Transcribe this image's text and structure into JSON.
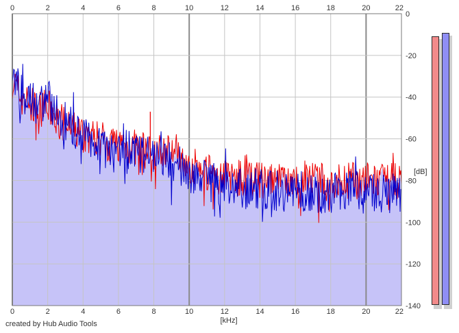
{
  "chart_data": {
    "type": "area",
    "title": "",
    "xlabel": "[kHz]",
    "ylabel": "[dB]",
    "xlim": [
      0,
      22
    ],
    "ylim": [
      -140,
      0
    ],
    "x_ticks": [
      0,
      2,
      4,
      6,
      8,
      10,
      12,
      14,
      16,
      18,
      20,
      22
    ],
    "y_ticks": [
      0,
      -20,
      -40,
      -60,
      -80,
      -100,
      -120,
      -140
    ],
    "grid": true,
    "colors": {
      "plot_bg": "#ffffff",
      "grid_minor": "#c4c4c4",
      "grid_major": "#8a8a8a",
      "fill": "#c6c3f8"
    },
    "series": [
      {
        "color": "#ee0000",
        "x": [
          0,
          0.5,
          1,
          1.5,
          2,
          2.5,
          3,
          3.5,
          4,
          4.5,
          5,
          5.5,
          6,
          6.5,
          7,
          7.5,
          8,
          8.5,
          9,
          9.5,
          10,
          11,
          12,
          13,
          14,
          15,
          16,
          17,
          18,
          19,
          20,
          21,
          22
        ],
        "values": [
          -32,
          -40,
          -44,
          -46,
          -45,
          -50,
          -54,
          -56,
          -58,
          -59,
          -60,
          -62,
          -62,
          -64,
          -64,
          -66,
          -66,
          -66,
          -65,
          -67,
          -72,
          -76,
          -78,
          -79,
          -80,
          -81,
          -80,
          -80,
          -81,
          -80,
          -80,
          -81,
          -80
        ],
        "spread": 9
      },
      {
        "color": "#0000cc",
        "x": [
          0,
          0.5,
          1,
          1.5,
          2,
          2.5,
          3,
          3.5,
          4,
          4.5,
          5,
          5.5,
          6,
          6.5,
          7,
          7.5,
          8,
          8.5,
          9,
          9.5,
          10,
          11,
          12,
          13,
          14,
          15,
          16,
          17,
          18,
          19,
          20,
          21,
          22
        ],
        "values": [
          -30,
          -38,
          -42,
          -44,
          -40,
          -48,
          -52,
          -55,
          -59,
          -61,
          -61,
          -63,
          -63,
          -66,
          -67,
          -68,
          -68,
          -70,
          -72,
          -73,
          -76,
          -80,
          -82,
          -84,
          -84,
          -85,
          -85,
          -86,
          -86,
          -85,
          -86,
          -86,
          -86
        ],
        "spread": 10
      }
    ],
    "annotations": [
      {
        "x": 7.8,
        "y": -47
      }
    ]
  },
  "level_meters": [
    {
      "color": "#f28a8a",
      "level": -4.2
    },
    {
      "color": "#8f8ef5",
      "level": -3.6
    }
  ],
  "credit_text": "created by Hub Audio Tools"
}
